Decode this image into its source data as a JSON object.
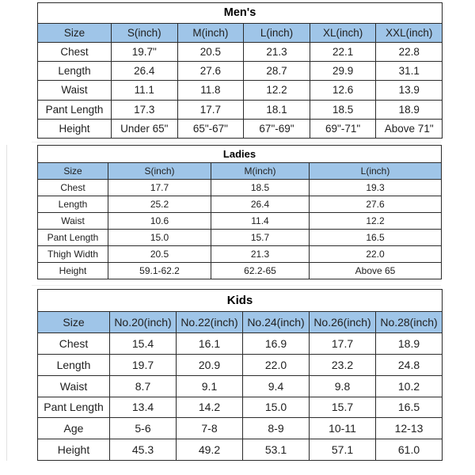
{
  "colors": {
    "header_bg": "#9FC5E8",
    "border": "#2b2b2b",
    "text": "#212121"
  },
  "tables": [
    {
      "id": "mens",
      "title": "Men's",
      "columns": [
        "Size",
        "S(inch)",
        "M(inch)",
        "L(inch)",
        "XL(inch)",
        "XXL(inch)"
      ],
      "rows": [
        {
          "label": "Chest",
          "values": [
            "19.7\"",
            "20.5",
            "21.3",
            "22.1",
            "22.8"
          ]
        },
        {
          "label": "Length",
          "values": [
            "26.4",
            "27.6",
            "28.7",
            "29.9",
            "31.1"
          ]
        },
        {
          "label": "Waist",
          "values": [
            "11.1",
            "11.8",
            "12.2",
            "12.6",
            "13.9"
          ]
        },
        {
          "label": "Pant Length",
          "values": [
            "17.3",
            "17.7",
            "18.1",
            "18.5",
            "18.9"
          ]
        },
        {
          "label": "Height",
          "values": [
            "Under 65\"",
            "65\"-67\"",
            "67\"-69\"",
            "69\"-71\"",
            "Above 71\""
          ]
        }
      ]
    },
    {
      "id": "ladies",
      "title": "Ladies",
      "columns": [
        "Size",
        "S(inch)",
        "M(inch)",
        "L(inch)"
      ],
      "rows": [
        {
          "label": "Chest",
          "values": [
            "17.7",
            "18.5",
            "19.3"
          ]
        },
        {
          "label": "Length",
          "values": [
            "25.2",
            "26.4",
            "27.6"
          ]
        },
        {
          "label": "Waist",
          "values": [
            "10.6",
            "11.4",
            "12.2"
          ]
        },
        {
          "label": "Pant Length",
          "values": [
            "15.0",
            "15.7",
            "16.5"
          ]
        },
        {
          "label": "Thigh Width",
          "values": [
            "20.5",
            "21.3",
            "22.0"
          ]
        },
        {
          "label": "Height",
          "values": [
            "59.1-62.2",
            "62.2-65",
            "Above 65"
          ]
        }
      ]
    },
    {
      "id": "kids",
      "title": "Kids",
      "columns": [
        "Size",
        "No.20(inch)",
        "No.22(inch)",
        "No.24(inch)",
        "No.26(inch)",
        "No.28(inch)"
      ],
      "rows": [
        {
          "label": "Chest",
          "values": [
            "15.4",
            "16.1",
            "16.9",
            "17.7",
            "18.9"
          ]
        },
        {
          "label": "Length",
          "values": [
            "19.7",
            "20.9",
            "22.0",
            "23.2",
            "24.8"
          ]
        },
        {
          "label": "Waist",
          "values": [
            "8.7",
            "9.1",
            "9.4",
            "9.8",
            "10.2"
          ]
        },
        {
          "label": "Pant Length",
          "values": [
            "13.4",
            "14.2",
            "15.0",
            "15.7",
            "16.5"
          ]
        },
        {
          "label": "Age",
          "values": [
            "5-6",
            "7-8",
            "8-9",
            "10-11",
            "12-13"
          ]
        },
        {
          "label": "Height",
          "values": [
            "45.3",
            "49.2",
            "53.1",
            "57.1",
            "61.0"
          ]
        }
      ]
    }
  ]
}
